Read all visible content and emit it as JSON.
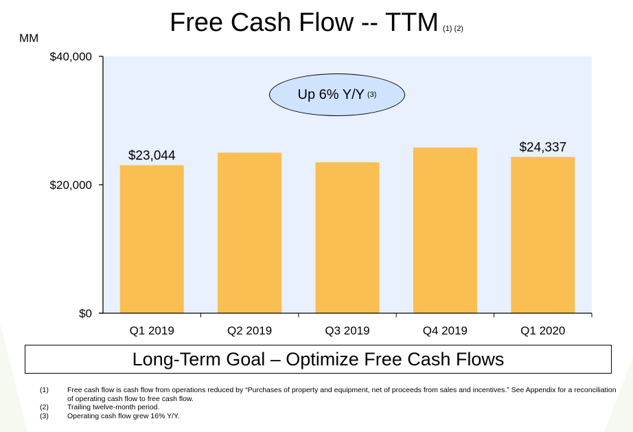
{
  "header": {
    "title": "Free Cash Flow -- TTM",
    "title_footnotes": "(1) (2)",
    "unit_label": "MM"
  },
  "callout": {
    "text": "Up 6% Y/Y",
    "footnote": "(3)"
  },
  "goal_banner": "Long-Term Goal – Optimize Free Cash Flows",
  "footnotes": [
    {
      "num": "(1)",
      "text": "Free cash flow is cash flow from operations reduced by “Purchases of property and equipment, net of proceeds from sales and incentives.” See Appendix for a reconciliation of operating cash flow to free cash flow."
    },
    {
      "num": "(2)",
      "text": "Trailing twelve-month period."
    },
    {
      "num": "(3)",
      "text": "Operating cash flow grew 16% Y/Y."
    }
  ],
  "colors": {
    "bar": "#f9bf52",
    "plot_bg": "#e8f1fd",
    "callout_bg": "#cfe3ff",
    "axis": "#000000"
  },
  "chart_data": {
    "type": "bar",
    "categories": [
      "Q1 2019",
      "Q2 2019",
      "Q3 2019",
      "Q4 2019",
      "Q1 2020"
    ],
    "values": [
      23044,
      25000,
      23500,
      25800,
      24337
    ],
    "data_labels": [
      "$23,044",
      "",
      "",
      "",
      "$24,337"
    ],
    "ylim": [
      0,
      40000
    ],
    "yticks": [
      0,
      20000,
      40000
    ],
    "ytick_labels": [
      "$0",
      "$20,000",
      "$40,000"
    ],
    "ylabel": "MM",
    "xlabel": "",
    "grid": false,
    "legend": "none"
  }
}
